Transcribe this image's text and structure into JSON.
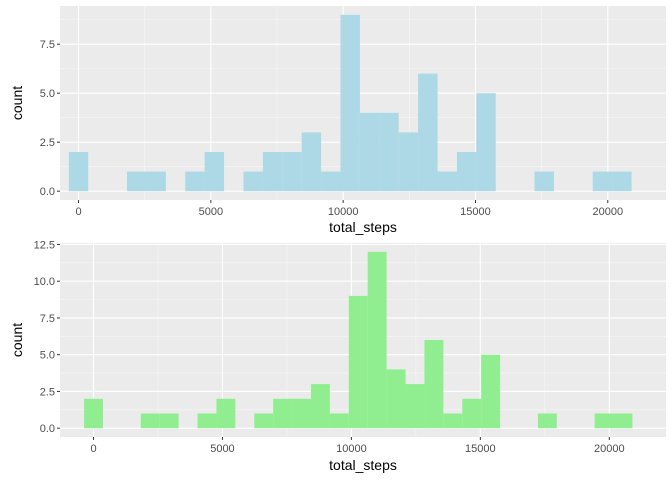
{
  "chart_data": [
    {
      "type": "bar",
      "fill": "#add8e6",
      "xlabel": "total_steps",
      "ylabel": "count",
      "xlim": [
        -700,
        22200
      ],
      "ylim": [
        -0.45,
        9.45
      ],
      "xticks": [
        0,
        5000,
        10000,
        15000,
        20000
      ],
      "xtick_labels": [
        "0",
        "5000",
        "10000",
        "15000",
        "20000"
      ],
      "yticks": [
        0,
        2.5,
        5,
        7.5
      ],
      "ytick_labels": [
        "0.0",
        "2.5",
        "5.0",
        "7.5"
      ],
      "bin_width": 733.3,
      "bins_start": -366.7,
      "values": [
        2,
        0,
        0,
        1,
        1,
        0,
        1,
        2,
        0,
        1,
        2,
        2,
        3,
        1,
        9,
        4,
        4,
        3,
        6,
        1,
        2,
        5,
        0,
        0,
        1,
        0,
        0,
        1,
        1
      ],
      "grid": true
    },
    {
      "type": "bar",
      "fill": "#90ee90",
      "xlabel": "total_steps",
      "ylabel": "count",
      "xlim": [
        -1300,
        22200
      ],
      "ylim": [
        -0.6,
        12.6
      ],
      "xticks": [
        0,
        5000,
        10000,
        15000,
        20000
      ],
      "xtick_labels": [
        "0",
        "5000",
        "10000",
        "15000",
        "20000"
      ],
      "yticks": [
        0,
        2.5,
        5,
        7.5,
        10,
        12.5
      ],
      "ytick_labels": [
        "0.0",
        "2.5",
        "5.0",
        "7.5",
        "10.0",
        "12.5"
      ],
      "bin_width": 733.3,
      "bins_start": -366.7,
      "values": [
        2,
        0,
        0,
        1,
        1,
        0,
        1,
        2,
        0,
        1,
        2,
        2,
        3,
        1,
        9,
        12,
        4,
        3,
        6,
        1,
        2,
        5,
        0,
        0,
        1,
        0,
        0,
        1,
        1
      ],
      "grid": true
    }
  ]
}
